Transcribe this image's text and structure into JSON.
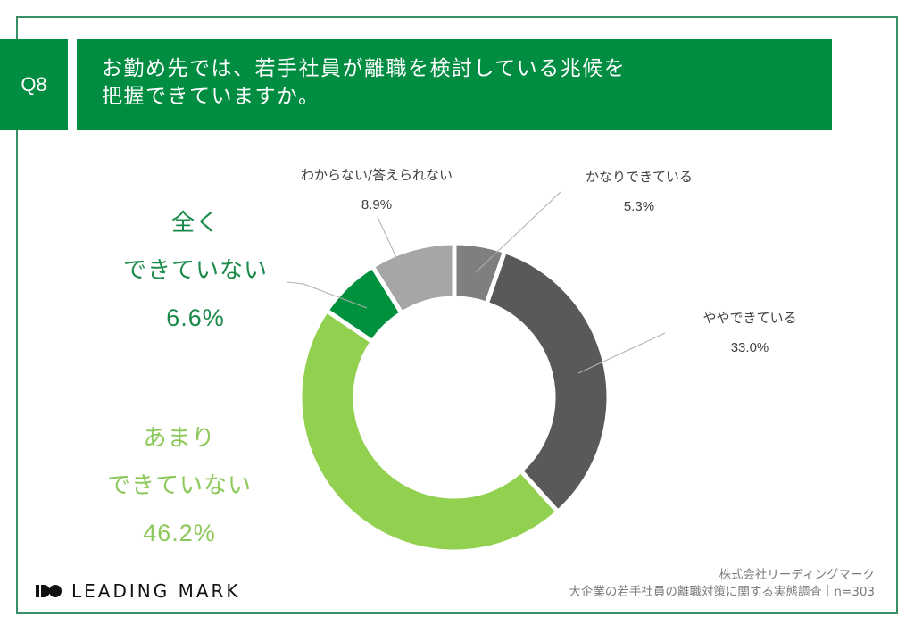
{
  "header": {
    "question_number": "Q8",
    "title_line1": "お勤め先では、若手社員が離職を検討している兆候を",
    "title_line2": "把握できていますか。"
  },
  "colors": {
    "brand_green": "#008d41",
    "frame_border": "#3a8f66",
    "slice_quite_able": "#7f7f7f",
    "slice_somewhat_able": "#595959",
    "slice_not_very_able": "#92d050",
    "slice_not_at_all": "#00913f",
    "slice_dont_know": "#a6a6a6"
  },
  "labels": {
    "dont_know": {
      "text": "わからない/答えられない",
      "pct": "8.9%"
    },
    "quite_able": {
      "text": "かなりできている",
      "pct": "5.3%"
    },
    "somewhat_able": {
      "text": "ややできている",
      "pct": "33.0%"
    },
    "not_at_all": {
      "line1": "全く",
      "line2": "できていない",
      "pct": "6.6%"
    },
    "not_very_able": {
      "line1": "あまり",
      "line2": "できていない",
      "pct": "46.2%"
    }
  },
  "footer": {
    "logo_text": "LEADING MARK",
    "company": "株式会社リーディングマーク",
    "survey": "大企業の若手社員の離職対策に関する実態調査｜n=303"
  },
  "chart_data": {
    "type": "pie",
    "subtype": "donut",
    "title": "お勤め先では、若手社員が離職を検討している兆候を把握できていますか。",
    "categories": [
      "かなりできている",
      "ややできている",
      "あまりできていない",
      "全くできていない",
      "わからない/答えられない"
    ],
    "values": [
      5.3,
      33.0,
      46.2,
      6.6,
      8.9
    ],
    "unit": "%",
    "n": 303,
    "start_angle": "12 o'clock, clockwise",
    "colors": [
      "#7f7f7f",
      "#595959",
      "#92d050",
      "#00913f",
      "#a6a6a6"
    ],
    "legend": "none (direct labels)"
  }
}
